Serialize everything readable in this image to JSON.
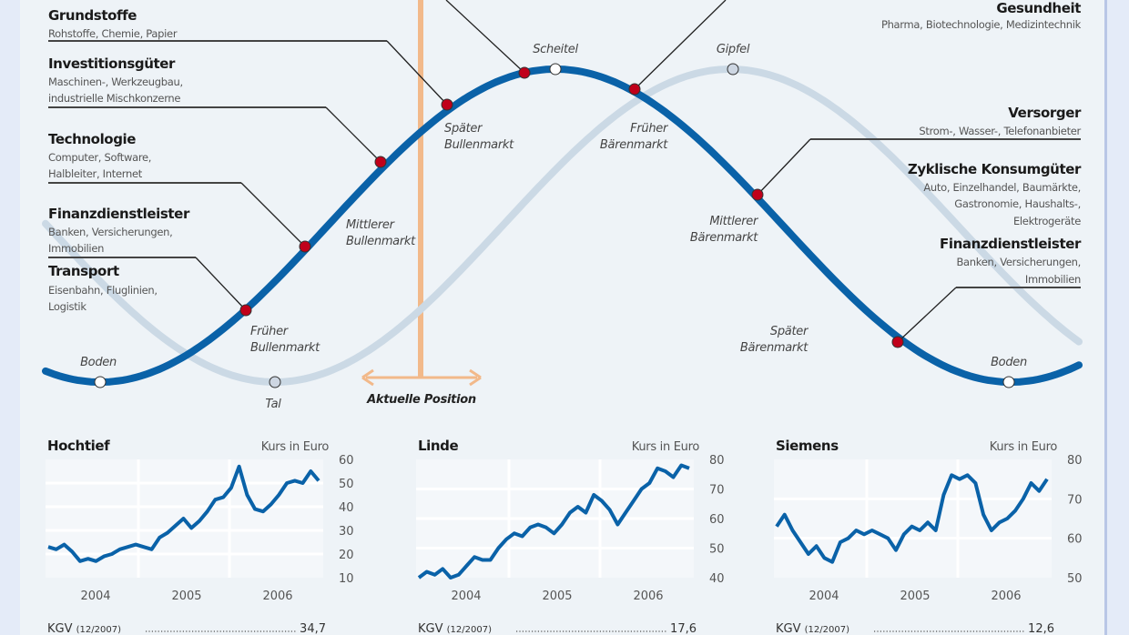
{
  "colors": {
    "main_curve": "#0a62a8",
    "shifted_curve": "#cbd9e5",
    "sector_dot": "#c0001a",
    "position_marker": "#f2b98a",
    "price_line": "#0a62a8"
  },
  "diagram": {
    "left_sectors": [
      {
        "title": "Grundstoffe",
        "lines": [
          "Rohstoffe, Chemie, Papier"
        ]
      },
      {
        "title": "Investitionsgüter",
        "lines": [
          "Maschinen-, Werkzeugbau,",
          "industrielle Mischkonzerne"
        ]
      },
      {
        "title": "Technologie",
        "lines": [
          "Computer, Software,",
          "Halbleiter, Internet"
        ]
      },
      {
        "title": "Finanzdienstleister",
        "lines": [
          "Banken, Versicherungen,",
          "Immobilien"
        ]
      },
      {
        "title": "Transport",
        "lines": [
          "Eisenbahn, Fluglinien,",
          "Logistik"
        ]
      }
    ],
    "right_sectors": [
      {
        "title": "Gesundheit",
        "lines": [
          "Pharma, Biotechnologie, Medizintechnik"
        ]
      },
      {
        "title": "Versorger",
        "lines": [
          "Strom-, Wasser-, Telefonanbieter"
        ]
      },
      {
        "title": "Zyklische Konsumgüter",
        "lines": [
          "Auto, Einzelhandel, Baumärkte,",
          "Gastronomie, Haushalts-,",
          "Elektrogeräte"
        ]
      },
      {
        "title": "Finanzdienstleister",
        "lines": [
          "Banken, Versicherungen,",
          "Immobilien"
        ]
      }
    ],
    "phases": {
      "boden": "Boden",
      "tal": "Tal",
      "scheitel": "Scheitel",
      "gipfel": "Gipfel",
      "frueher_bullen": [
        "Früher",
        "Bullenmarkt"
      ],
      "mittlerer_bullen": [
        "Mittlerer",
        "Bullenmarkt"
      ],
      "spaeter_bullen": [
        "Später",
        "Bullenmarkt"
      ],
      "frueher_baeren": [
        "Früher",
        "Bärenmarkt"
      ],
      "mittlerer_baeren": [
        "Mittlerer",
        "Bärenmarkt"
      ],
      "spaeter_baeren": [
        "Später",
        "Bärenmarkt"
      ]
    },
    "current_position_label": "Aktuelle Position"
  },
  "chart_data": [
    {
      "type": "line",
      "title": "Hochtief",
      "ylabel": "Kurs in Euro",
      "ylim": [
        10,
        60
      ],
      "yticks": [
        "60",
        "50",
        "40",
        "30",
        "20",
        "10"
      ],
      "xticks": [
        "2004",
        "2005",
        "2006"
      ],
      "x_range": [
        "mid 2003",
        "late 2006"
      ],
      "values": [
        23,
        22,
        24,
        21,
        17,
        18,
        17,
        19,
        20,
        22,
        23,
        24,
        23,
        22,
        27,
        29,
        32,
        35,
        31,
        34,
        38,
        43,
        44,
        48,
        57,
        45,
        39,
        38,
        41,
        45,
        50,
        51,
        50,
        55,
        51
      ],
      "kgv": {
        "label": "KGV",
        "period": "(12/2007)",
        "value": "34,7"
      }
    },
    {
      "type": "line",
      "title": "Linde",
      "ylabel": "Kurs in Euro",
      "ylim": [
        40,
        80
      ],
      "yticks": [
        "80",
        "70",
        "60",
        "50",
        "40"
      ],
      "xticks": [
        "2004",
        "2005",
        "2006"
      ],
      "x_range": [
        "mid 2003",
        "late 2006"
      ],
      "values": [
        40,
        42,
        41,
        43,
        40,
        41,
        44,
        47,
        46,
        46,
        50,
        53,
        55,
        54,
        57,
        58,
        57,
        55,
        58,
        62,
        64,
        62,
        68,
        66,
        63,
        58,
        62,
        66,
        70,
        72,
        77,
        76,
        74,
        78,
        77
      ],
      "kgv": {
        "label": "KGV",
        "period": "(12/2007)",
        "value": "17,6"
      }
    },
    {
      "type": "line",
      "title": "Siemens",
      "ylabel": "Kurs in Euro",
      "ylim": [
        50,
        80
      ],
      "yticks": [
        "80",
        "70",
        "60",
        "50"
      ],
      "xticks": [
        "2004",
        "2005",
        "2006"
      ],
      "x_range": [
        "mid 2003",
        "late 2006"
      ],
      "values": [
        63,
        66,
        62,
        59,
        56,
        58,
        55,
        54,
        59,
        60,
        62,
        61,
        62,
        61,
        60,
        57,
        61,
        63,
        62,
        64,
        62,
        71,
        76,
        75,
        76,
        74,
        66,
        62,
        64,
        65,
        67,
        70,
        74,
        72,
        75
      ],
      "kgv": {
        "label": "KGV",
        "period": "(12/2007)",
        "value": "12,6"
      }
    }
  ]
}
